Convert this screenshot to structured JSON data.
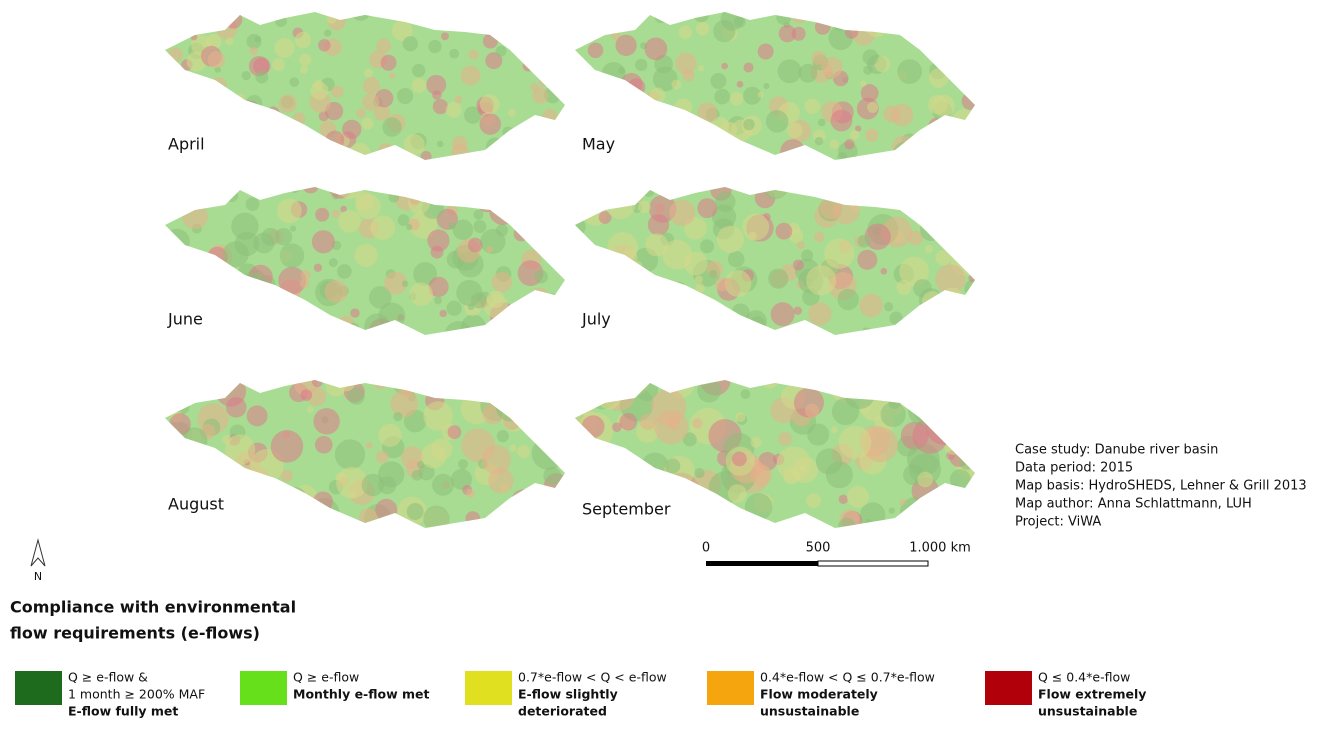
{
  "panels": [
    {
      "label": "April"
    },
    {
      "label": "May"
    },
    {
      "label": "June"
    },
    {
      "label": "July"
    },
    {
      "label": "August"
    },
    {
      "label": "September"
    }
  ],
  "north": "N",
  "scale_bar": {
    "ticks": [
      "0",
      "500",
      "1.000 km"
    ]
  },
  "metadata": [
    "Case study: Danube river basin",
    "Data period: 2015",
    "Map basis: HydroSHEDS, Lehner & Grill 2013",
    "Map author: Anna Schlattmann, LUH",
    "Project: ViWA"
  ],
  "legend": {
    "title": [
      "Compliance with environmental",
      "flow requirements (e-flows)"
    ],
    "items": [
      {
        "color": "#1e6b1e",
        "lines": [
          "Q ≥ e-flow &",
          "1 month  ≥ 200% MAF"
        ],
        "label": [
          "E-flow fully met"
        ]
      },
      {
        "color": "#66e01a",
        "lines": [
          "Q ≥ e-flow"
        ],
        "label": [
          "Monthly e-flow met"
        ]
      },
      {
        "color": "#e0e020",
        "lines": [
          "0.7*e-flow < Q < e-flow"
        ],
        "label": [
          "E-flow slightly",
          "deteriorated"
        ]
      },
      {
        "color": "#f5a60f",
        "lines": [
          "0.4*e-flow < Q ≤ 0.7*e-flow"
        ],
        "label": [
          "Flow moderately",
          "unsustainable"
        ]
      },
      {
        "color": "#b2000a",
        "lines": [
          "Q ≤ 0.4*e-flow"
        ],
        "label": [
          "Flow extremely",
          "unsustainable"
        ]
      }
    ]
  }
}
